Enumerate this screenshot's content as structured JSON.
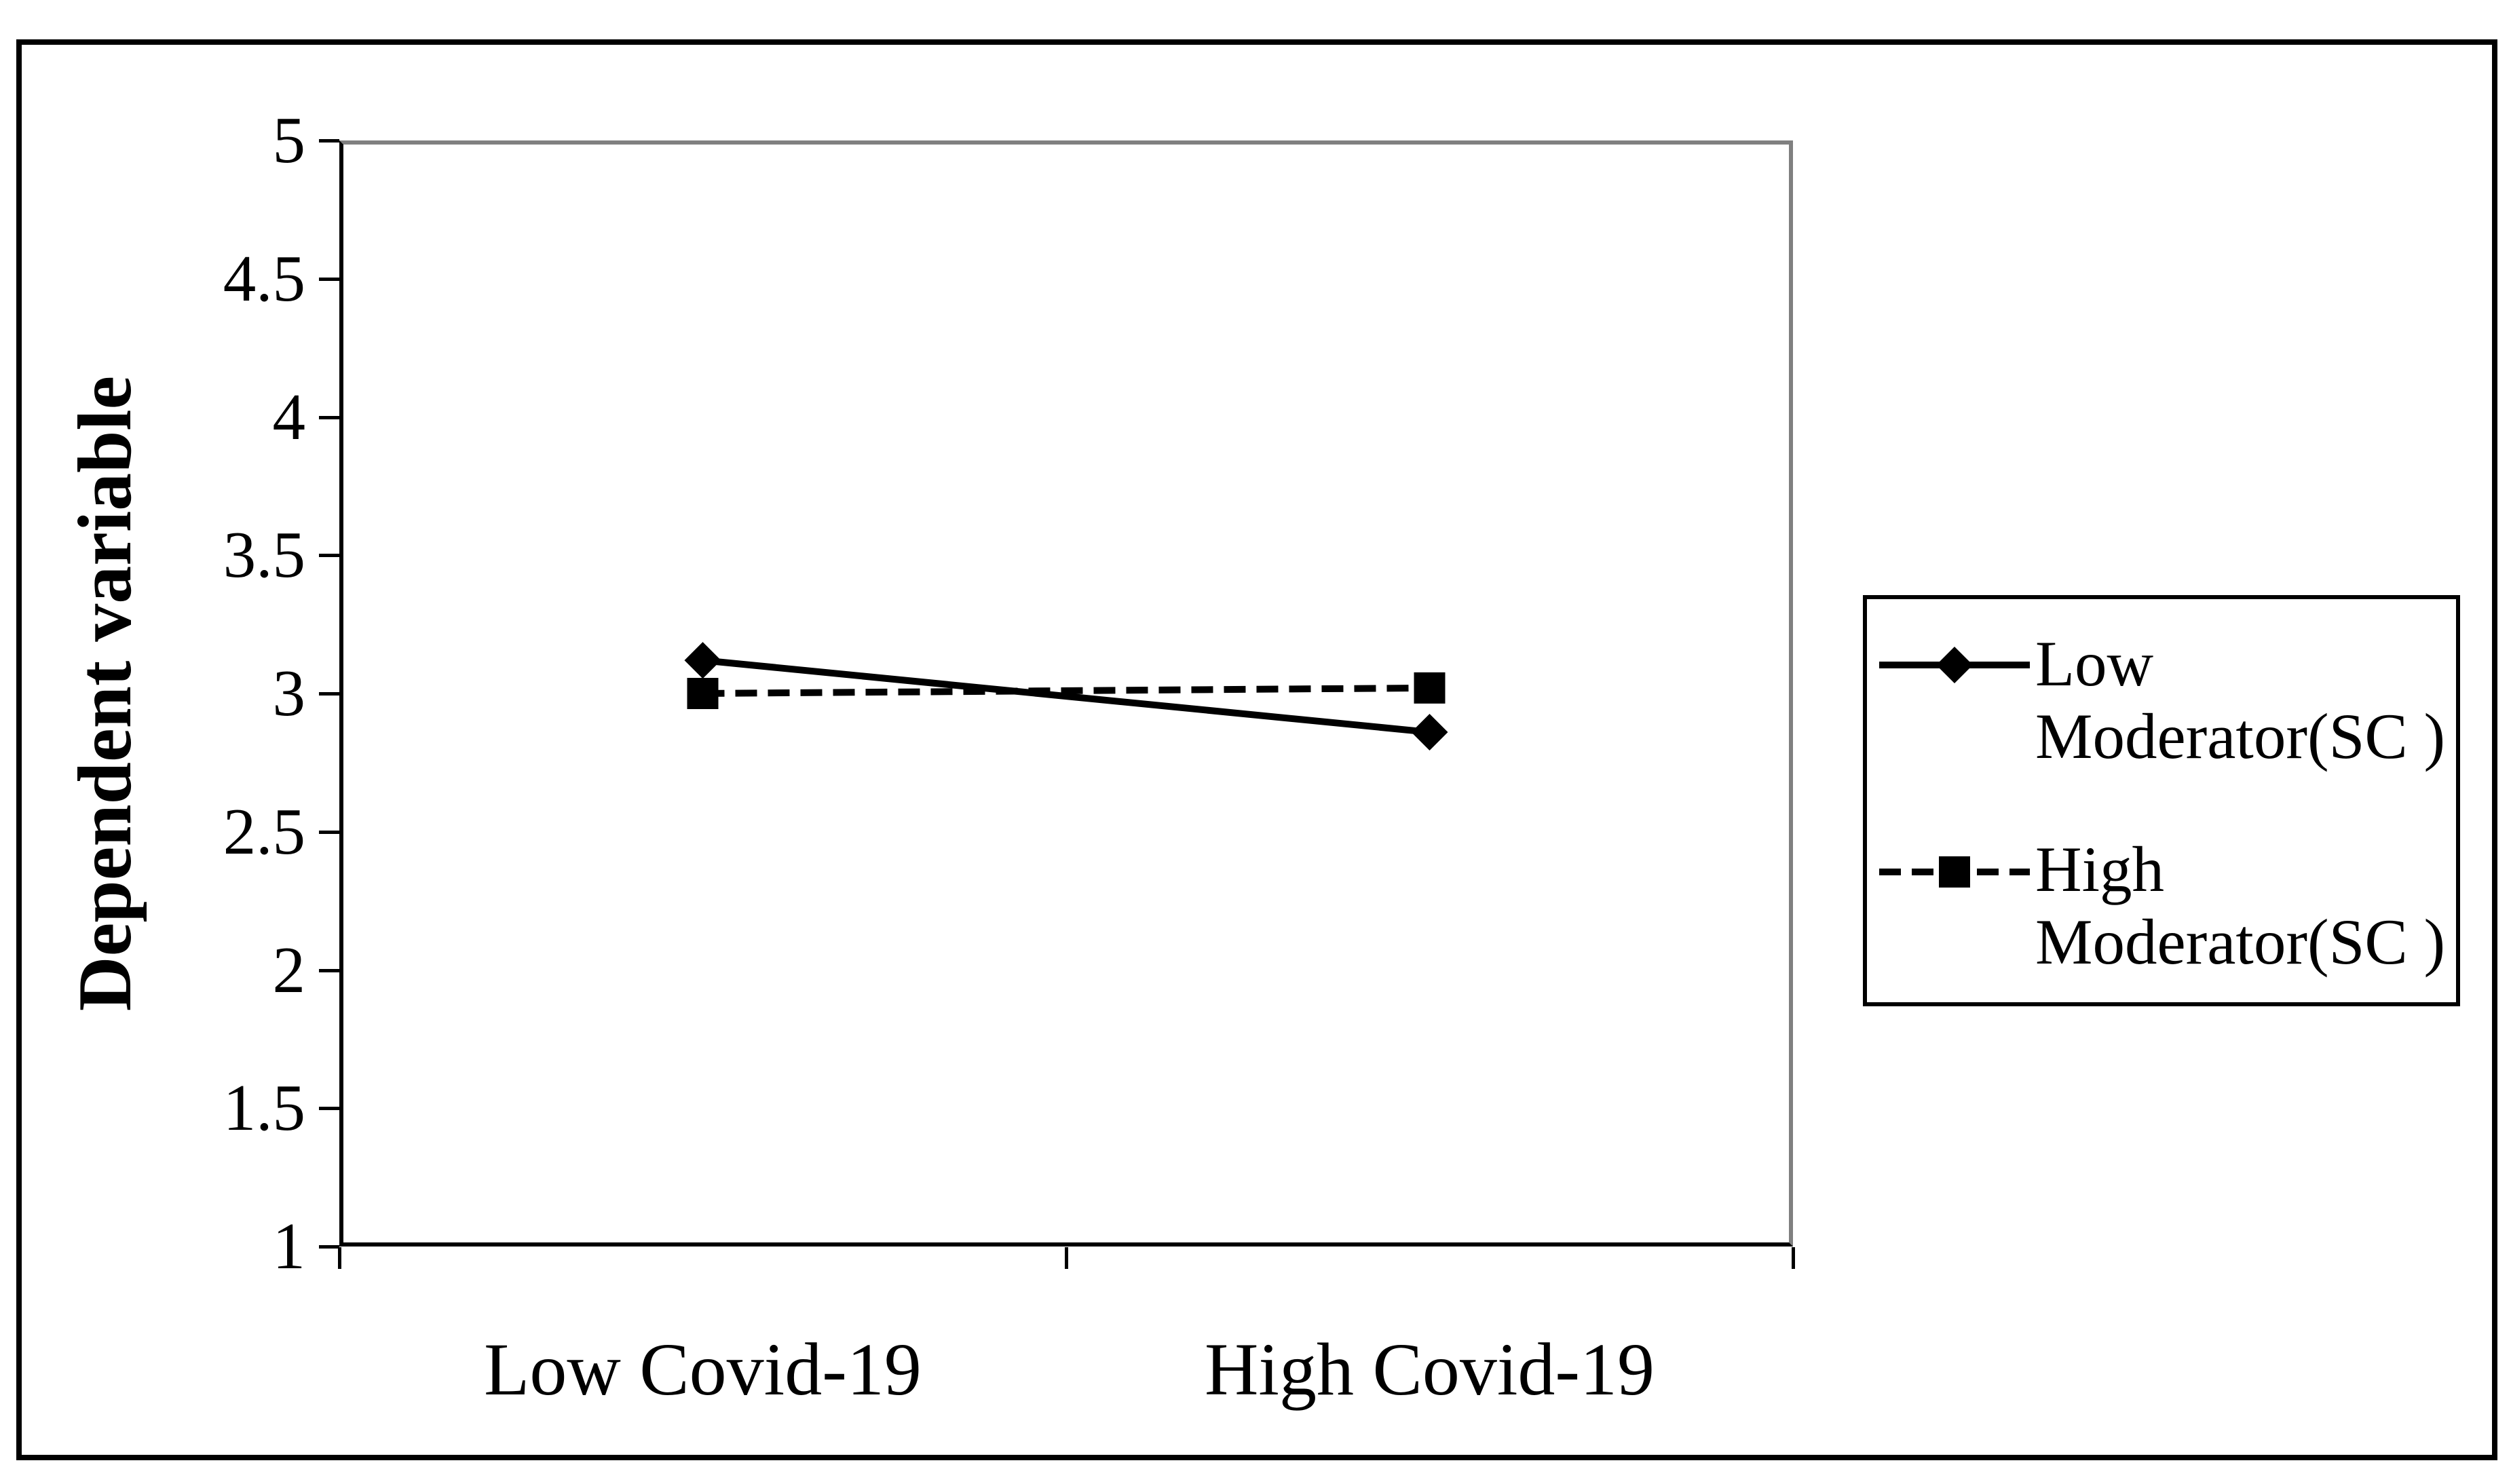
{
  "chart_data": {
    "type": "line",
    "title": "",
    "categories": [
      "Low Covid-19",
      "High Covid-19"
    ],
    "series": [
      {
        "name": "Low Moderator(SC )",
        "legend_lines": [
          "Low",
          "Moderator(SC )"
        ],
        "values": [
          3.12,
          2.86
        ],
        "line_style": "solid",
        "marker": "diamond",
        "color": "#000000"
      },
      {
        "name": "High Moderator(SC )",
        "legend_lines": [
          "High",
          "Moderator(SC )"
        ],
        "values": [
          3.0,
          3.02
        ],
        "line_style": "dashed",
        "marker": "square",
        "color": "#000000"
      }
    ],
    "xlabel": "",
    "ylabel": "Dependent variable",
    "ylim": [
      1,
      5
    ],
    "ytick_step": 0.5,
    "ytick_labels": [
      "5",
      "4.5",
      "4",
      "3.5",
      "3",
      "2.5",
      "2",
      "1.5",
      "1"
    ],
    "legend_position": "right",
    "grid": false
  },
  "colors": {
    "series_line": "#000000",
    "plot_border": "#808080",
    "axis": "#000000",
    "text": "#000000",
    "background": "#ffffff"
  }
}
